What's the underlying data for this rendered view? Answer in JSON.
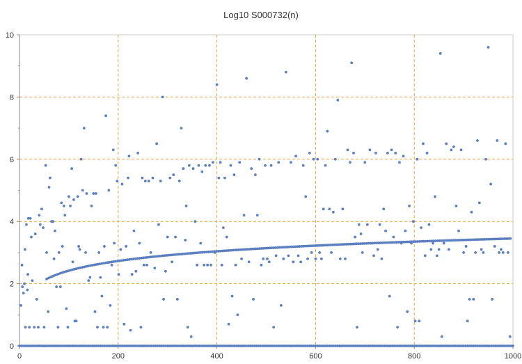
{
  "chart_data": {
    "type": "scatter",
    "title": "Log10 S000732(n)",
    "xlabel": "",
    "ylabel": "",
    "xlim": [
      0,
      1000
    ],
    "ylim": [
      0,
      10
    ],
    "x_ticks": [
      "0",
      "200",
      "400",
      "600",
      "800",
      "1000"
    ],
    "y_ticks": [
      "0",
      "2",
      "4",
      "6",
      "8",
      "10"
    ],
    "grid": true,
    "grid_lines_x": [
      200,
      400,
      600,
      800
    ],
    "grid_lines_y": [
      2,
      4,
      6,
      8
    ],
    "legend": "none",
    "colors": {
      "points": "#5b7fbf",
      "grid": "#e8a33d",
      "axis": "#888888",
      "frame": "#cccccc"
    },
    "series": [
      {
        "values": [
          [
            3,
            1.3
          ],
          [
            5,
            2.6
          ],
          [
            6,
            1.9
          ],
          [
            8,
            1.7
          ],
          [
            10,
            2.0
          ],
          [
            11,
            3.1
          ],
          [
            12,
            0.6
          ],
          [
            14,
            3.9
          ],
          [
            16,
            1.8
          ],
          [
            17,
            2.3
          ],
          [
            18,
            4.1
          ],
          [
            20,
            0.6
          ],
          [
            22,
            4.1
          ],
          [
            24,
            3.5
          ],
          [
            26,
            2.1
          ],
          [
            30,
            0.6
          ],
          [
            32,
            3.6
          ],
          [
            35,
            1.5
          ],
          [
            38,
            0.6
          ],
          [
            40,
            4.2
          ],
          [
            42,
            3.9
          ],
          [
            45,
            4.4
          ],
          [
            48,
            3.8
          ],
          [
            50,
            0.6
          ],
          [
            53,
            5.8
          ],
          [
            55,
            3.0
          ],
          [
            58,
            1.1
          ],
          [
            60,
            5.1
          ],
          [
            62,
            5.4
          ],
          [
            65,
            4.0
          ],
          [
            68,
            4.0
          ],
          [
            70,
            2.8
          ],
          [
            72,
            3.7
          ],
          [
            75,
            1.9
          ],
          [
            78,
            0.6
          ],
          [
            80,
            3.0
          ],
          [
            83,
            1.9
          ],
          [
            85,
            4.6
          ],
          [
            87,
            3.2
          ],
          [
            90,
            4.5
          ],
          [
            92,
            4.2
          ],
          [
            95,
            1.2
          ],
          [
            98,
            0.6
          ],
          [
            100,
            4.8
          ],
          [
            103,
            4.5
          ],
          [
            106,
            5.7
          ],
          [
            108,
            2.7
          ],
          [
            110,
            4.7
          ],
          [
            112,
            0.8
          ],
          [
            115,
            0.8
          ],
          [
            118,
            4.8
          ],
          [
            120,
            3.2
          ],
          [
            122,
            3.1
          ],
          [
            125,
            6.0
          ],
          [
            128,
            5.0
          ],
          [
            131,
            7.0
          ],
          [
            134,
            3.0
          ],
          [
            136,
            4.9
          ],
          [
            140,
            2.1
          ],
          [
            143,
            2.2
          ],
          [
            146,
            4.5
          ],
          [
            150,
            4.9
          ],
          [
            153,
            1.1
          ],
          [
            155,
            4.9
          ],
          [
            158,
            0.6
          ],
          [
            161,
            3.0
          ],
          [
            164,
            2.2
          ],
          [
            167,
            1.6
          ],
          [
            170,
            0.6
          ],
          [
            172,
            3.2
          ],
          [
            175,
            7.4
          ],
          [
            178,
            0.6
          ],
          [
            181,
            5.0
          ],
          [
            184,
            1.3
          ],
          [
            187,
            2.6
          ],
          [
            190,
            6.3
          ],
          [
            192,
            3.3
          ],
          [
            195,
            5.8
          ],
          [
            198,
            5.3
          ],
          [
            201,
            2.3
          ],
          [
            205,
            3.1
          ],
          [
            208,
            5.2
          ],
          [
            212,
            0.7
          ],
          [
            216,
            3.2
          ],
          [
            220,
            5.4
          ],
          [
            222,
            6.1
          ],
          [
            225,
            0.5
          ],
          [
            228,
            2.3
          ],
          [
            232,
            3.7
          ],
          [
            236,
            2.4
          ],
          [
            240,
            6.2
          ],
          [
            243,
            3.3
          ],
          [
            246,
            0.6
          ],
          [
            249,
            5.4
          ],
          [
            252,
            2.6
          ],
          [
            255,
            5.3
          ],
          [
            258,
            2.6
          ],
          [
            262,
            5.3
          ],
          [
            266,
            3.0
          ],
          [
            270,
            5.4
          ],
          [
            274,
            2.5
          ],
          [
            278,
            6.5
          ],
          [
            282,
            3.9
          ],
          [
            286,
            5.3
          ],
          [
            290,
            8.0
          ],
          [
            292,
            1.5
          ],
          [
            296,
            2.4
          ],
          [
            300,
            3.5
          ],
          [
            305,
            5.4
          ],
          [
            309,
            2.7
          ],
          [
            312,
            5.5
          ],
          [
            316,
            3.5
          ],
          [
            320,
            1.5
          ],
          [
            324,
            5.3
          ],
          [
            328,
            7.0
          ],
          [
            332,
            5.7
          ],
          [
            336,
            3.4
          ],
          [
            338,
            4.5
          ],
          [
            341,
            0.6
          ],
          [
            344,
            5.8
          ],
          [
            348,
            0.3
          ],
          [
            352,
            5.7
          ],
          [
            356,
            4.0
          ],
          [
            360,
            2.6
          ],
          [
            363,
            5.8
          ],
          [
            367,
            3.3
          ],
          [
            370,
            5.6
          ],
          [
            374,
            2.6
          ],
          [
            377,
            5.8
          ],
          [
            381,
            2.6
          ],
          [
            385,
            5.8
          ],
          [
            388,
            2.6
          ],
          [
            392,
            5.9
          ],
          [
            396,
            3.0
          ],
          [
            400,
            8.4
          ],
          [
            404,
            5.4
          ],
          [
            407,
            5.9
          ],
          [
            410,
            2.6
          ],
          [
            413,
            3.8
          ],
          [
            416,
            5.4
          ],
          [
            420,
            3.5
          ],
          [
            424,
            0.7
          ],
          [
            428,
            5.8
          ],
          [
            431,
            1.6
          ],
          [
            435,
            5.5
          ],
          [
            438,
            2.6
          ],
          [
            442,
            1.0
          ],
          [
            446,
            5.9
          ],
          [
            450,
            2.8
          ],
          [
            455,
            4.2
          ],
          [
            460,
            8.6
          ],
          [
            465,
            2.7
          ],
          [
            470,
            5.7
          ],
          [
            474,
            1.5
          ],
          [
            478,
            5.5
          ],
          [
            482,
            4.2
          ],
          [
            486,
            6.0
          ],
          [
            490,
            2.6
          ],
          [
            494,
            2.8
          ],
          [
            498,
            5.8
          ],
          [
            502,
            2.8
          ],
          [
            506,
            2.7
          ],
          [
            510,
            5.8
          ],
          [
            515,
            0.6
          ],
          [
            520,
            2.9
          ],
          [
            525,
            5.9
          ],
          [
            530,
            1.3
          ],
          [
            535,
            2.8
          ],
          [
            540,
            8.8
          ],
          [
            545,
            2.9
          ],
          [
            550,
            5.9
          ],
          [
            555,
            2.7
          ],
          [
            560,
            6.1
          ],
          [
            565,
            2.9
          ],
          [
            570,
            2.7
          ],
          [
            575,
            5.8
          ],
          [
            580,
            4.8
          ],
          [
            584,
            2.8
          ],
          [
            588,
            6.2
          ],
          [
            592,
            3.0
          ],
          [
            596,
            6.0
          ],
          [
            600,
            2.8
          ],
          [
            604,
            6.0
          ],
          [
            608,
            3.0
          ],
          [
            612,
            2.8
          ],
          [
            616,
            4.4
          ],
          [
            620,
            5.8
          ],
          [
            624,
            6.9
          ],
          [
            628,
            4.4
          ],
          [
            632,
            3.0
          ],
          [
            636,
            4.3
          ],
          [
            640,
            6.0
          ],
          [
            645,
            7.9
          ],
          [
            650,
            2.8
          ],
          [
            655,
            4.4
          ],
          [
            660,
            2.8
          ],
          [
            665,
            6.3
          ],
          [
            670,
            5.9
          ],
          [
            673,
            9.1
          ],
          [
            677,
            6.2
          ],
          [
            680,
            3.5
          ],
          [
            684,
            0.6
          ],
          [
            688,
            3.9
          ],
          [
            692,
            3.6
          ],
          [
            695,
            3.0
          ],
          [
            700,
            5.9
          ],
          [
            705,
            3.9
          ],
          [
            710,
            6.3
          ],
          [
            714,
            3.3
          ],
          [
            718,
            2.9
          ],
          [
            722,
            6.2
          ],
          [
            726,
            3.1
          ],
          [
            730,
            3.9
          ],
          [
            734,
            2.8
          ],
          [
            738,
            4.4
          ],
          [
            742,
            3.7
          ],
          [
            746,
            6.2
          ],
          [
            750,
            1.6
          ],
          [
            754,
            6.3
          ],
          [
            758,
            3.5
          ],
          [
            762,
            6.2
          ],
          [
            766,
            0.6
          ],
          [
            770,
            5.9
          ],
          [
            774,
            3.3
          ],
          [
            778,
            6.1
          ],
          [
            782,
            3.7
          ],
          [
            786,
            1.1
          ],
          [
            790,
            4.5
          ],
          [
            794,
            3.3
          ],
          [
            798,
            4.0
          ],
          [
            802,
            0.8
          ],
          [
            806,
            6.0
          ],
          [
            810,
            0.8
          ],
          [
            814,
            3.8
          ],
          [
            818,
            6.5
          ],
          [
            822,
            2.9
          ],
          [
            826,
            6.2
          ],
          [
            830,
            3.9
          ],
          [
            834,
            3.1
          ],
          [
            838,
            3.3
          ],
          [
            842,
            4.8
          ],
          [
            846,
            2.9
          ],
          [
            850,
            3.1
          ],
          [
            853,
            9.4
          ],
          [
            856,
            0.3
          ],
          [
            860,
            3.3
          ],
          [
            865,
            6.5
          ],
          [
            870,
            3.1
          ],
          [
            875,
            6.3
          ],
          [
            880,
            6.4
          ],
          [
            885,
            4.5
          ],
          [
            890,
            3.7
          ],
          [
            895,
            6.3
          ],
          [
            900,
            3.0
          ],
          [
            905,
            3.2
          ],
          [
            908,
            0.8
          ],
          [
            912,
            1.5
          ],
          [
            916,
            4.3
          ],
          [
            920,
            1.5
          ],
          [
            924,
            3.0
          ],
          [
            928,
            6.6
          ],
          [
            932,
            4.6
          ],
          [
            936,
            3.1
          ],
          [
            940,
            3.0
          ],
          [
            945,
            6.0
          ],
          [
            950,
            9.6
          ],
          [
            955,
            5.2
          ],
          [
            958,
            1.5
          ],
          [
            963,
            3.2
          ],
          [
            968,
            6.6
          ],
          [
            972,
            3.0
          ],
          [
            976,
            3.1
          ],
          [
            980,
            3.0
          ],
          [
            985,
            6.5
          ],
          [
            990,
            3.0
          ],
          [
            994,
            0.3
          ]
        ]
      }
    ],
    "curve_band": {
      "description_values_only": "dense lower arc of points from about (55, 2.15) rising to about (1000, 3.45)",
      "start": [
        55,
        2.15
      ],
      "end": [
        995,
        3.45
      ]
    },
    "zero_row": {
      "y": 0,
      "x_from": 0,
      "x_to": 1000
    }
  }
}
